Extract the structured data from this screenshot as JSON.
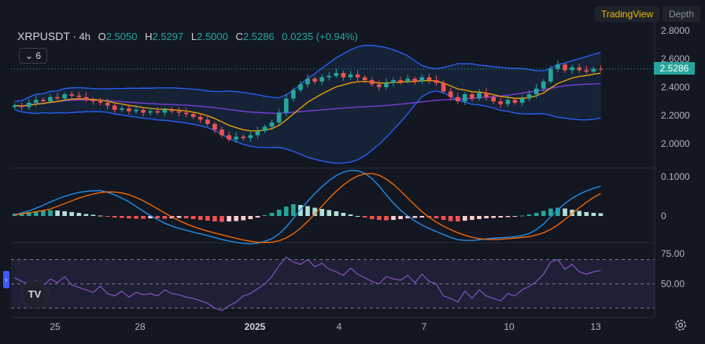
{
  "tabs": {
    "tradingview": "TradingView",
    "depth": "Depth"
  },
  "header": {
    "symbol": "XRPUSDT",
    "interval": "4h",
    "open_label": "O",
    "open": "2.5050",
    "high_label": "H",
    "high": "2.5297",
    "low_label": "L",
    "low": "2.5000",
    "close_label": "C",
    "close": "2.5286",
    "change": "0.0235 (+0.94%)"
  },
  "indicator_toggle": {
    "count": "6"
  },
  "last_price_label": "2.5286",
  "tv_logo_text": "TV",
  "colors": {
    "up": "#26a69a",
    "down": "#ef5350",
    "bb": "#2962ff",
    "ema_fast": "#f7a600",
    "ma_slow": "#7b3fe4",
    "macd": "#2196f3",
    "signal": "#ff6d00",
    "rsi": "#7e57c2",
    "background": "#131722"
  },
  "chart_data": [
    {
      "type": "candlestick",
      "title": "",
      "ylim": [
        1.85,
        2.85
      ],
      "y_ticks": [
        "2.8000",
        "2.6000",
        "2.4000",
        "2.2000",
        "2.0000"
      ],
      "overlays": [
        "bollinger-bands",
        "moving-average-fast",
        "moving-average-slow"
      ],
      "last_price": 2.5286,
      "close": [
        2.27,
        2.26,
        2.29,
        2.31,
        2.3,
        2.33,
        2.32,
        2.35,
        2.34,
        2.33,
        2.31,
        2.3,
        2.29,
        2.27,
        2.24,
        2.25,
        2.23,
        2.24,
        2.22,
        2.23,
        2.22,
        2.24,
        2.23,
        2.22,
        2.21,
        2.19,
        2.17,
        2.14,
        2.1,
        2.06,
        2.03,
        2.05,
        2.04,
        2.06,
        2.09,
        2.12,
        2.15,
        2.22,
        2.32,
        2.38,
        2.42,
        2.46,
        2.44,
        2.47,
        2.48,
        2.5,
        2.47,
        2.49,
        2.47,
        2.45,
        2.42,
        2.4,
        2.43,
        2.45,
        2.44,
        2.46,
        2.44,
        2.47,
        2.45,
        2.43,
        2.37,
        2.33,
        2.3,
        2.35,
        2.32,
        2.36,
        2.33,
        2.3,
        2.28,
        2.31,
        2.29,
        2.32,
        2.35,
        2.39,
        2.44,
        2.53,
        2.56,
        2.52,
        2.54,
        2.52,
        2.51,
        2.53,
        2.5286
      ]
    },
    {
      "type": "histogram",
      "title": "",
      "y_ticks": [
        "0.1000",
        "0"
      ],
      "ylim": [
        -0.06,
        0.12
      ],
      "series": [
        "macd-line",
        "signal-line",
        "histogram"
      ],
      "histogram": [
        0.006,
        0.008,
        0.01,
        0.012,
        0.014,
        0.015,
        0.014,
        0.012,
        0.01,
        0.008,
        0.005,
        0.003,
        0.001,
        -0.002,
        -0.004,
        -0.005,
        -0.006,
        -0.007,
        -0.007,
        -0.006,
        -0.006,
        -0.007,
        -0.006,
        -0.005,
        -0.006,
        -0.008,
        -0.01,
        -0.012,
        -0.014,
        -0.015,
        -0.014,
        -0.013,
        -0.011,
        -0.008,
        -0.004,
        0.002,
        0.008,
        0.016,
        0.024,
        0.03,
        0.028,
        0.025,
        0.021,
        0.018,
        0.015,
        0.012,
        0.008,
        0.004,
        0.0,
        -0.004,
        -0.008,
        -0.01,
        -0.011,
        -0.01,
        -0.008,
        -0.006,
        -0.005,
        -0.004,
        -0.004,
        -0.006,
        -0.01,
        -0.013,
        -0.014,
        -0.012,
        -0.01,
        -0.008,
        -0.006,
        -0.005,
        -0.004,
        -0.003,
        -0.001,
        0.001,
        0.004,
        0.008,
        0.013,
        0.019,
        0.021,
        0.019,
        0.016,
        0.013,
        0.01,
        0.008,
        0.007
      ]
    },
    {
      "type": "line",
      "title": "",
      "ylim": [
        25,
        82
      ],
      "y_ticks": [
        "75.00",
        "50.00"
      ],
      "bands": [
        70,
        50,
        30
      ],
      "values": [
        55,
        52,
        50,
        53,
        48,
        54,
        51,
        56,
        49,
        47,
        45,
        43,
        48,
        42,
        40,
        44,
        39,
        43,
        41,
        42,
        40,
        45,
        42,
        41,
        39,
        38,
        36,
        34,
        30,
        28,
        32,
        35,
        40,
        42,
        46,
        50,
        56,
        65,
        72,
        68,
        66,
        70,
        64,
        67,
        62,
        60,
        57,
        63,
        58,
        55,
        52,
        50,
        56,
        54,
        53,
        57,
        51,
        58,
        52,
        50,
        40,
        38,
        35,
        44,
        38,
        45,
        40,
        38,
        36,
        42,
        40,
        45,
        48,
        52,
        58,
        68,
        70,
        62,
        66,
        60,
        58,
        60,
        61
      ]
    }
  ],
  "x_axis": [
    "25",
    "28",
    "2025",
    "4",
    "7",
    "10",
    "13"
  ]
}
